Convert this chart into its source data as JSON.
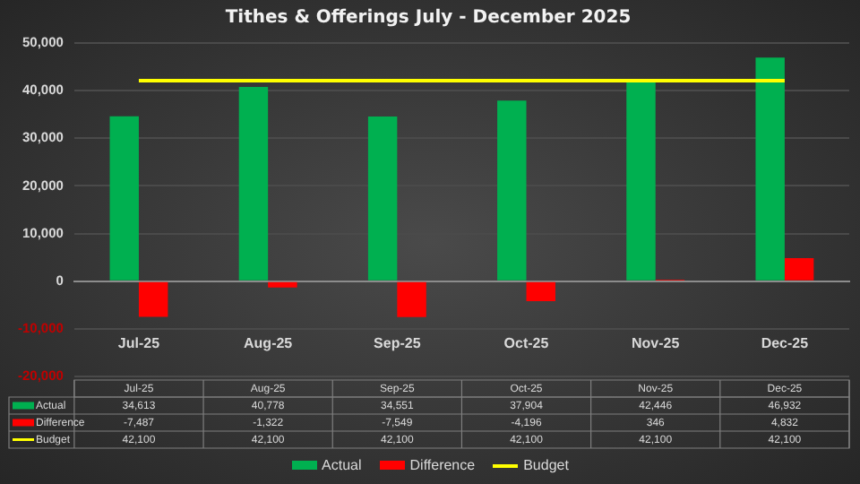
{
  "chart_data": {
    "type": "bar",
    "title": "Tithes & Offerings July - December 2025",
    "categories": [
      "Jul-25",
      "Aug-25",
      "Sep-25",
      "Oct-25",
      "Nov-25",
      "Dec-25"
    ],
    "series": [
      {
        "name": "Actual",
        "color": "#00b050",
        "values": [
          34613,
          40778,
          34551,
          37904,
          42446,
          46932
        ],
        "value_labels": [
          "34,613",
          "40,778",
          "34,551",
          "37,904",
          "42,446",
          "46,932"
        ]
      },
      {
        "name": "Difference",
        "color": "#ff0000",
        "values": [
          -7487,
          -1322,
          -7549,
          -4196,
          346,
          4832
        ],
        "value_labels": [
          "-7,487",
          "-1,322",
          "-7,549",
          "-4,196",
          "346",
          "4,832"
        ]
      },
      {
        "name": "Budget",
        "type": "line",
        "color": "#ffff00",
        "values": [
          42100,
          42100,
          42100,
          42100,
          42100,
          42100
        ],
        "value_labels": [
          "42,100",
          "42,100",
          "42,100",
          "42,100",
          "42,100",
          "42,100"
        ]
      }
    ],
    "ylim": [
      -20000,
      50000
    ],
    "yticks": [
      {
        "value": -20000,
        "label": "-20,000"
      },
      {
        "value": -10000,
        "label": "-10,000"
      },
      0,
      {
        "value": 10000,
        "label": "10,000"
      },
      {
        "value": 20000,
        "label": "20,000"
      },
      {
        "value": 30000,
        "label": "30,000"
      },
      {
        "value": 40000,
        "label": "40,000"
      },
      {
        "value": 50000,
        "label": "50,000"
      }
    ],
    "grid": "y",
    "legend": "bottom",
    "marker": "none"
  }
}
